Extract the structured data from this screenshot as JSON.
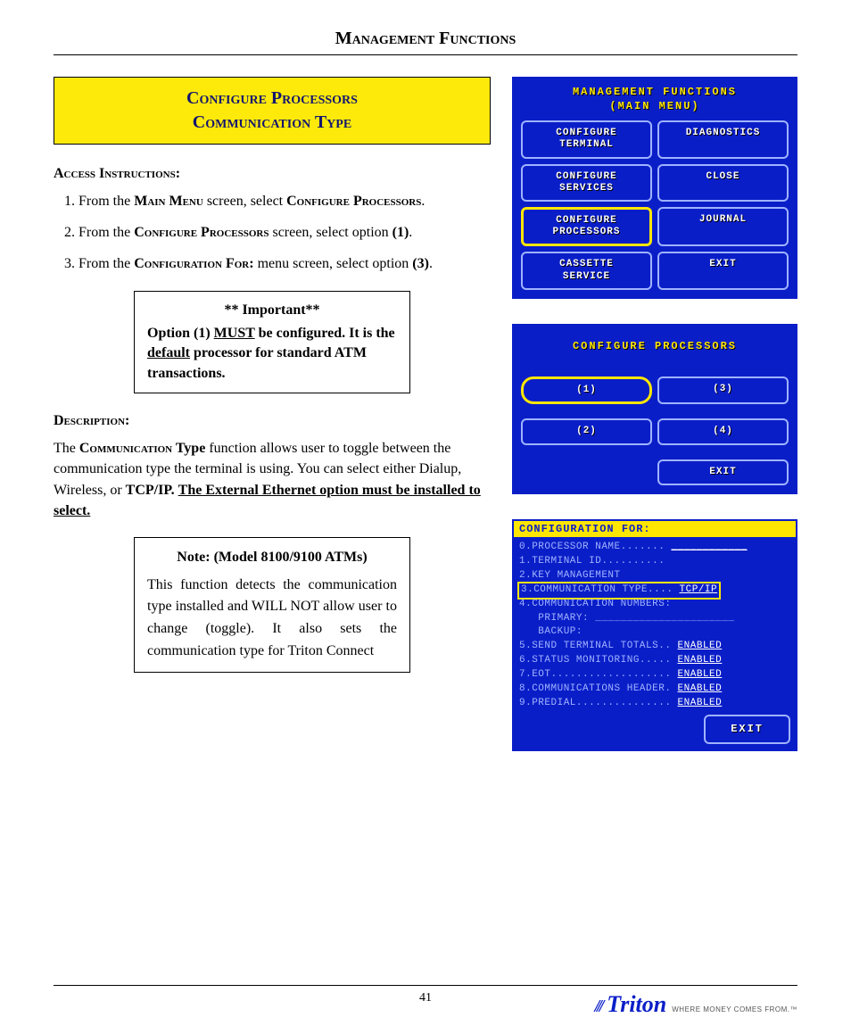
{
  "header": {
    "title": "Management Functions"
  },
  "title_box": {
    "line1": "Configure  Processors",
    "line2": "Communication Type"
  },
  "access": {
    "label": "Access Instructions:",
    "items": [
      {
        "pre": "From the ",
        "sc1": "Main Menu",
        "mid": " screen, select ",
        "sc2": "Configure Processors",
        "post": "."
      },
      {
        "pre": "From the ",
        "sc1": "Configure Processors",
        "mid": " screen, select option ",
        "b": "(1)",
        "post": "."
      },
      {
        "pre": "From the ",
        "sc1": "Configuration For:",
        "mid": " menu screen, select option  ",
        "b": "(3)",
        "post": "."
      }
    ]
  },
  "important": {
    "title": "** Important**",
    "text_pre": "Option (1) ",
    "must": "MUST",
    "text_mid": " be configured. It is the ",
    "default_word": "default",
    "text_post": " processor for standard ATM transactions."
  },
  "description": {
    "label": "Description:",
    "p1_pre": "The ",
    "p1_sc": "Communication",
    "p1_b": " Type",
    "p1_mid": " function allows user to toggle between the communication type the terminal is using. You can select either Dialup, Wireless, or ",
    "p1_tcp": "TCP/IP.",
    "p1_sp": "  ",
    "p1_u": "The External Ethernet option must be installed to select."
  },
  "note": {
    "title": "Note: (Model 8100/9100 ATMs)",
    "text": "This function detects the communication type installed and WILL NOT allow user to change (toggle). It also sets the communication type for Triton Connect"
  },
  "atm1": {
    "title_l1": "MANAGEMENT FUNCTIONS",
    "title_l2": "(MAIN MENU)",
    "buttons": [
      {
        "label": "CONFIGURE\nTERMINAL",
        "hl": false
      },
      {
        "label": "DIAGNOSTICS",
        "hl": false
      },
      {
        "label": "CONFIGURE\nSERVICES",
        "hl": false
      },
      {
        "label": "CLOSE",
        "hl": false
      },
      {
        "label": "CONFIGURE\nPROCESSORS",
        "hl": true
      },
      {
        "label": "JOURNAL",
        "hl": false
      },
      {
        "label": "CASSETTE\nSERVICE",
        "hl": false
      },
      {
        "label": "EXIT",
        "hl": false
      }
    ]
  },
  "atm2": {
    "title": "CONFIGURE PROCESSORS",
    "buttons": [
      {
        "label": "(1)",
        "hl": true,
        "pill": true
      },
      {
        "label": "(3)",
        "hl": false
      },
      {
        "label": "(2)",
        "hl": false
      },
      {
        "label": "(4)",
        "hl": false
      }
    ],
    "exit": "EXIT"
  },
  "atm3": {
    "title": "CONFIGURATION FOR:",
    "lines": [
      {
        "t": "0.PROCESSOR NAME.......",
        "v": "____________"
      },
      {
        "t": "1.TERMINAL ID..........",
        "v": ""
      },
      {
        "t": "2.KEY MANAGEMENT",
        "v": ""
      },
      {
        "t": "3.COMMUNICATION TYPE....",
        "v": "TCP/IP",
        "hl": true
      },
      {
        "t": "4.COMMUNICATION NUMBERS:",
        "v": ""
      },
      {
        "t": "   PRIMARY: ______________________",
        "v": ""
      },
      {
        "t": "   BACKUP:",
        "v": ""
      },
      {
        "t": "5.SEND TERMINAL TOTALS..",
        "v": "ENABLED"
      },
      {
        "t": "6.STATUS MONITORING.....",
        "v": "ENABLED"
      },
      {
        "t": "7.EOT...................",
        "v": "ENABLED"
      },
      {
        "t": "8.COMMUNICATIONS HEADER.",
        "v": "ENABLED"
      },
      {
        "t": "9.PREDIAL...............",
        "v": "ENABLED"
      }
    ],
    "exit": "EXIT"
  },
  "footer": {
    "page": "41",
    "brand": "Triton",
    "tag": "WHERE MONEY COMES FROM.™"
  },
  "colors": {
    "atm_bg": "#0a1ec8",
    "atm_yellow": "#ffe600",
    "title_yellow": "#fdea0a",
    "title_text": "#14156e"
  }
}
